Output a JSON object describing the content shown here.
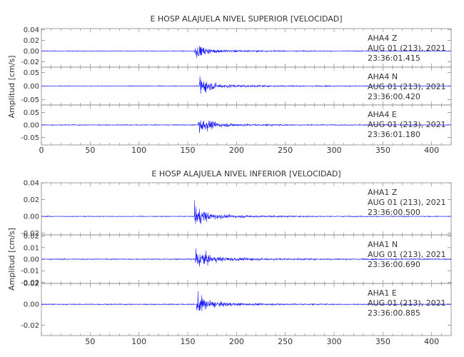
{
  "chart_data": [
    {
      "type": "line",
      "title": "E HOSP ALAJUELA NIVEL SUPERIOR [VELOCIDAD]",
      "ylabel": "Amplitud [cm/s]",
      "xlim": [
        0,
        420
      ],
      "x_ticks": [
        "0",
        "50",
        "100",
        "150",
        "200",
        "250",
        "300",
        "350",
        "400"
      ],
      "show_x_zero": true,
      "panels": [
        {
          "station": "AHA4",
          "component": "Z",
          "date": "AUG 01 (213), 2021",
          "time": "23:36:01.415",
          "ylim": [
            -0.03,
            0.042
          ],
          "y_ticks": [
            -0.02,
            0.0,
            0.02,
            0.04
          ],
          "y_tick_labels": [
            "-0.02",
            "0.00",
            "0.02",
            "0.04"
          ],
          "onset": 157,
          "peak": 0.021,
          "noise": 0.0012,
          "color": "#1a1aff"
        },
        {
          "station": "AHA4",
          "component": "N",
          "date": "AUG 01 (213), 2021",
          "time": "23:36:00.420",
          "ylim": [
            -0.07,
            0.07
          ],
          "y_ticks": [
            -0.05,
            0.0,
            0.05
          ],
          "y_tick_labels": [
            "-0.05",
            "0.00",
            "0.05"
          ],
          "onset": 162,
          "peak": 0.055,
          "noise": 0.0025,
          "color": "#1a1aff"
        },
        {
          "station": "AHA4",
          "component": "E",
          "date": "AUG 01 (213), 2021",
          "time": "23:36:01.180",
          "ylim": [
            -0.08,
            0.08
          ],
          "y_ticks": [
            -0.05,
            0.0,
            0.05
          ],
          "y_tick_labels": [
            "-0.05",
            "0.00",
            "0.05"
          ],
          "onset": 161,
          "peak": 0.06,
          "noise": 0.003,
          "color": "#1a1aff"
        }
      ]
    },
    {
      "type": "line",
      "title": "E HOSP ALAJUELA NIVEL INFERIOR [VELOCIDAD]",
      "ylabel": "Amplitud [cm/s]",
      "xlim": [
        0,
        420
      ],
      "x_ticks": [
        "50",
        "100",
        "150",
        "200",
        "250",
        "300",
        "350",
        "400"
      ],
      "show_x_zero": false,
      "panels": [
        {
          "station": "AHA1",
          "component": "Z",
          "date": "AUG 01 (213), 2021",
          "time": "23:36:00.500",
          "ylim": [
            -0.022,
            0.04
          ],
          "y_ticks": [
            -0.02,
            0.0,
            0.02,
            0.04
          ],
          "y_tick_labels": [
            "-0.02",
            "0.00",
            "0.02",
            "0.04"
          ],
          "onset": 157,
          "peak": 0.021,
          "noise": 0.0008,
          "color": "#1a1aff"
        },
        {
          "station": "AHA1",
          "component": "N",
          "date": "AUG 01 (213), 2021",
          "time": "23:36:00.690",
          "ylim": [
            -0.021,
            0.021
          ],
          "y_ticks": [
            -0.02,
            -0.01,
            0.0,
            0.01,
            0.02
          ],
          "y_tick_labels": [
            "-0.02",
            "-0.01",
            "0.00",
            "0.01",
            "0.02"
          ],
          "onset": 158,
          "peak": 0.016,
          "noise": 0.0008,
          "color": "#1a1aff"
        },
        {
          "station": "AHA1",
          "component": "E",
          "date": "AUG 01 (213), 2021",
          "time": "23:36:00.885",
          "ylim": [
            -0.03,
            0.02
          ],
          "y_ticks": [
            -0.02,
            0.0,
            0.02
          ],
          "y_tick_labels": [
            "-0.02",
            "0.00",
            "0.02"
          ],
          "onset": 159,
          "peak": 0.016,
          "noise": 0.0008,
          "color": "#1a1aff"
        }
      ]
    }
  ]
}
